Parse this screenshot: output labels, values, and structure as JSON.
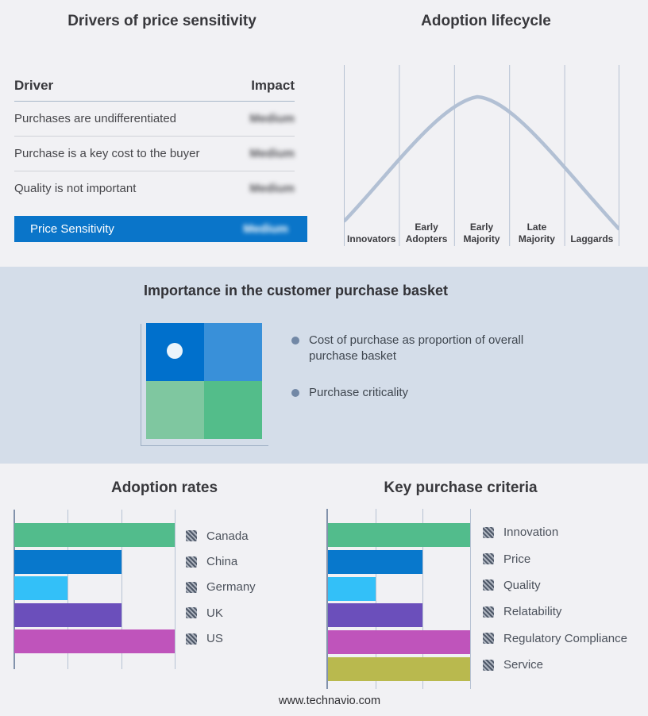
{
  "drivers_table": {
    "title": "Drivers of price sensitivity",
    "columns": {
      "driver": "Driver",
      "impact": "Impact"
    },
    "rows": [
      {
        "driver": "Purchases are undifferentiated",
        "impact": "Medium",
        "impact_blurred": true
      },
      {
        "driver": "Purchase is a key cost to the buyer",
        "impact": "Medium",
        "impact_blurred": true
      },
      {
        "driver": "Quality is not important",
        "impact": "Medium",
        "impact_blurred": true
      }
    ],
    "highlight_row": {
      "label": "Price Sensitivity",
      "impact": "Medium",
      "impact_blurred": true,
      "bg_color": "#0a75c9"
    }
  },
  "basket": {
    "title": "Importance in the customer purchase basket",
    "bullets": [
      "Cost of purchase as proportion of overall purchase basket",
      "Purchase criticality"
    ],
    "quadrant_colors": {
      "top_left": "#0070cc",
      "top_right": "#3990d9",
      "bottom_left": "#7fc7a0",
      "bottom_right": "#53bd8a"
    },
    "marker_color": "#eaf4fb",
    "marker_position": "top-left quadrant"
  },
  "footer": {
    "url": "www.technavio.com"
  },
  "chart_data": [
    {
      "id": "adoption-lifecycle",
      "type": "line",
      "title": "Adoption lifecycle",
      "categories": [
        "Innovators",
        "Early Adopters",
        "Early Majority",
        "Late Majority",
        "Laggards"
      ],
      "x_labels": [
        "Innovators",
        "Early\nAdopters",
        "Early\nMajority",
        "Late\nMajority",
        "Laggards"
      ],
      "shape": "bell curve rising from Innovators, peaking over Early Majority, falling through Laggards",
      "curve_color": "#b2c0d4",
      "gridlines": 6,
      "y_axis": "none (qualitative)"
    },
    {
      "id": "adoption-rates",
      "type": "bar",
      "title": "Adoption rates",
      "orientation": "horizontal",
      "categories": [
        "Canada",
        "China",
        "Germany",
        "UK",
        "US"
      ],
      "values": [
        3,
        2,
        1,
        2,
        3
      ],
      "max": 3,
      "colors": [
        "#52bc8c",
        "#0878cc",
        "#33c0f8",
        "#6b4fbb",
        "#bf54bb"
      ],
      "gridlines": 3,
      "note": "values are relative units read from unlabeled gridlines",
      "legend_position": "right",
      "legend_swatch_style": "gray diagonal hatch"
    },
    {
      "id": "key-purchase-criteria",
      "type": "bar",
      "title": "Key purchase criteria",
      "orientation": "horizontal",
      "categories": [
        "Innovation",
        "Price",
        "Quality",
        "Relatability",
        "Regulatory Compliance",
        "Service"
      ],
      "values": [
        3,
        2,
        1,
        2,
        3,
        3
      ],
      "max": 3,
      "colors": [
        "#52bc8c",
        "#0878cc",
        "#33c0f8",
        "#6b4fbb",
        "#bf54bb",
        "#b9b94e"
      ],
      "gridlines": 3,
      "note": "values are relative units read from unlabeled gridlines",
      "legend_position": "right",
      "legend_swatch_style": "gray diagonal hatch"
    }
  ]
}
